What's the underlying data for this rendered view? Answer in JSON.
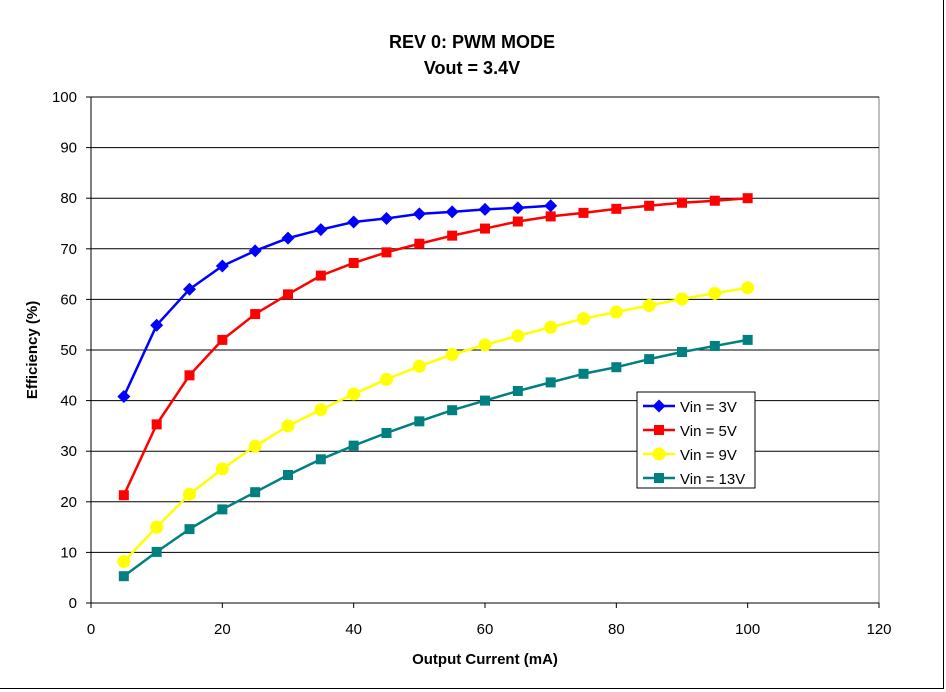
{
  "chart_data": {
    "type": "line",
    "title": "REV 0: PWM MODE",
    "subtitle": "Vout = 3.4V",
    "xlabel": "Output Current (mA)",
    "ylabel": "Efficiency (%)",
    "xlim": [
      0,
      120
    ],
    "ylim": [
      0,
      100
    ],
    "xticks": [
      "0",
      "20",
      "40",
      "60",
      "80",
      "100",
      "120"
    ],
    "yticks": [
      "0",
      "10",
      "20",
      "30",
      "40",
      "50",
      "60",
      "70",
      "80",
      "90",
      "100"
    ],
    "grid": "horizontal",
    "legend_position": "right",
    "series": [
      {
        "name": "Vin = 3V",
        "color": "#0000FF",
        "marker": "diamond",
        "x": [
          5,
          10,
          15,
          20,
          25,
          30,
          35,
          40,
          45,
          50,
          55,
          60,
          65,
          70
        ],
        "y": [
          40.8,
          54.9,
          62.0,
          66.6,
          69.6,
          72.1,
          73.8,
          75.3,
          76.0,
          76.9,
          77.3,
          77.8,
          78.1,
          78.5
        ]
      },
      {
        "name": "Vin = 5V",
        "color": "#FF0000",
        "marker": "square",
        "x": [
          5,
          10,
          15,
          20,
          25,
          30,
          35,
          40,
          45,
          50,
          55,
          60,
          65,
          70,
          75,
          80,
          85,
          90,
          95,
          100
        ],
        "y": [
          21.3,
          35.3,
          45.0,
          52.0,
          57.1,
          61.0,
          64.7,
          67.2,
          69.3,
          71.0,
          72.6,
          74.0,
          75.4,
          76.4,
          77.1,
          77.9,
          78.5,
          79.1,
          79.5,
          80.0
        ]
      },
      {
        "name": "Vin = 9V",
        "color": "#FFFF00",
        "marker": "circle",
        "x": [
          5,
          10,
          15,
          20,
          25,
          30,
          35,
          40,
          45,
          50,
          55,
          60,
          65,
          70,
          75,
          80,
          85,
          90,
          95,
          100
        ],
        "y": [
          8.2,
          15.0,
          21.5,
          26.5,
          31.0,
          35.0,
          38.2,
          41.3,
          44.2,
          46.8,
          49.1,
          51.0,
          52.8,
          54.5,
          56.2,
          57.5,
          58.8,
          60.1,
          61.2,
          62.3
        ]
      },
      {
        "name": "Vin = 13V",
        "color": "#008080",
        "marker": "square",
        "x": [
          5,
          10,
          15,
          20,
          25,
          30,
          35,
          40,
          45,
          50,
          55,
          60,
          65,
          70,
          75,
          80,
          85,
          90,
          95,
          100
        ],
        "y": [
          5.3,
          10.1,
          14.6,
          18.5,
          21.9,
          25.3,
          28.4,
          31.1,
          33.6,
          35.9,
          38.1,
          40.0,
          41.9,
          43.6,
          45.3,
          46.6,
          48.2,
          49.6,
          50.8,
          52.0
        ]
      }
    ]
  }
}
